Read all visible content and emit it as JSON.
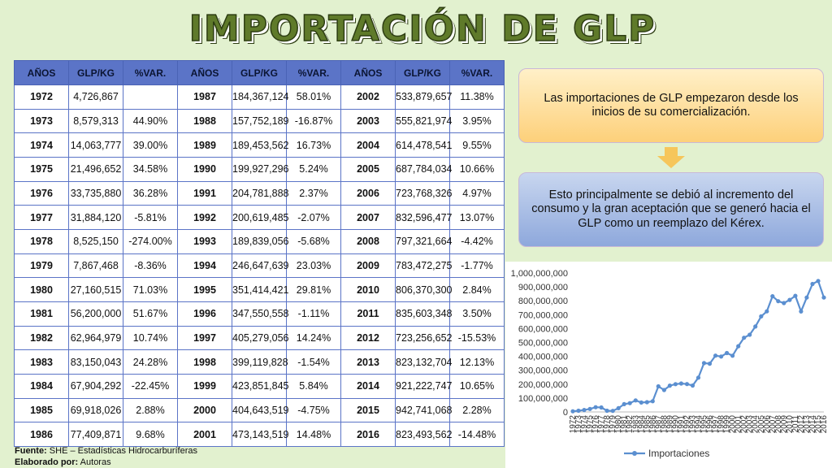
{
  "title": "IMPORTACIÓN DE GLP",
  "table": {
    "headers": [
      "AÑOS",
      "GLP/KG",
      "%VAR.",
      "AÑOS",
      "GLP/KG",
      "%VAR.",
      "AÑOS",
      "GLP/KG",
      "%VAR."
    ],
    "rows": [
      [
        "1972",
        "4,726,867",
        "",
        "1987",
        "184,367,124",
        "58.01%",
        "2002",
        "533,879,657",
        "11.38%"
      ],
      [
        "1973",
        "8,579,313",
        "44.90%",
        "1988",
        "157,752,189",
        "-16.87%",
        "2003",
        "555,821,974",
        "3.95%"
      ],
      [
        "1974",
        "14,063,777",
        "39.00%",
        "1989",
        "189,453,562",
        "16.73%",
        "2004",
        "614,478,541",
        "9.55%"
      ],
      [
        "1975",
        "21,496,652",
        "34.58%",
        "1990",
        "199,927,296",
        "5.24%",
        "2005",
        "687,784,034",
        "10.66%"
      ],
      [
        "1976",
        "33,735,880",
        "36.28%",
        "1991",
        "204,781,888",
        "2.37%",
        "2006",
        "723,768,326",
        "4.97%"
      ],
      [
        "1977",
        "31,884,120",
        "-5.81%",
        "1992",
        "200,619,485",
        "-2.07%",
        "2007",
        "832,596,477",
        "13.07%"
      ],
      [
        "1978",
        "8,525,150",
        "-274.00%",
        "1993",
        "189,839,056",
        "-5.68%",
        "2008",
        "797,321,664",
        "-4.42%"
      ],
      [
        "1979",
        "7,867,468",
        "-8.36%",
        "1994",
        "246,647,639",
        "23.03%",
        "2009",
        "783,472,275",
        "-1.77%"
      ],
      [
        "1980",
        "27,160,515",
        "71.03%",
        "1995",
        "351,414,421",
        "29.81%",
        "2010",
        "806,370,300",
        "2.84%"
      ],
      [
        "1981",
        "56,200,000",
        "51.67%",
        "1996",
        "347,550,558",
        "-1.11%",
        "2011",
        "835,603,348",
        "3.50%"
      ],
      [
        "1982",
        "62,964,979",
        "10.74%",
        "1997",
        "405,279,056",
        "14.24%",
        "2012",
        "723,256,652",
        "-15.53%"
      ],
      [
        "1983",
        "83,150,043",
        "24.28%",
        "1998",
        "399,119,828",
        "-1.54%",
        "2013",
        "823,132,704",
        "12.13%"
      ],
      [
        "1984",
        "67,904,292",
        "-22.45%",
        "1999",
        "423,851,845",
        "5.84%",
        "2014",
        "921,222,747",
        "10.65%"
      ],
      [
        "1985",
        "69,918,026",
        "2.88%",
        "2000",
        "404,643,519",
        "-4.75%",
        "2015",
        "942,741,068",
        "2.28%"
      ],
      [
        "1986",
        "77,409,871",
        "9.68%",
        "2001",
        "473,143,519",
        "14.48%",
        "2016",
        "823,493,562",
        "-14.48%"
      ]
    ]
  },
  "footnote": {
    "source_label": "Fuente:",
    "source_text": " SHE – Estadísticas Hidrocarburíferas",
    "author_label": "Elaborado por:",
    "author_text": " Autoras"
  },
  "box1_text": "Las importaciones de GLP empezaron desde los inicios de su comercialización.",
  "box2_text": "Esto principalmente se debió al incremento del consumo y la gran aceptación que se generó hacia el GLP como un reemplazo del Kérex.",
  "colors": {
    "line": "#5b8fd0",
    "header": "#5b74c7",
    "arrow": "#f6c65b"
  },
  "chart_data": {
    "type": "line",
    "title": "",
    "xlabel": "",
    "ylabel": "",
    "ylim": [
      0,
      1000000000
    ],
    "y_ticks": [
      "1,000,000,000",
      "900,000,000",
      "800,000,000",
      "700,000,000",
      "600,000,000",
      "500,000,000",
      "400,000,000",
      "300,000,000",
      "200,000,000",
      "100,000,000",
      "0"
    ],
    "legend": "Importaciones",
    "x": [
      "1972",
      "1973",
      "1974",
      "1975",
      "1976",
      "1977",
      "1978",
      "1979",
      "1980",
      "1981",
      "1982",
      "1983",
      "1984",
      "1985",
      "1986",
      "1987",
      "1988",
      "1989",
      "1990",
      "1991",
      "1992",
      "1993",
      "1994",
      "1995",
      "1996",
      "1997",
      "1998",
      "1999",
      "2000",
      "2001",
      "2002",
      "2003",
      "2004",
      "2005",
      "2006",
      "2007",
      "2008",
      "2009",
      "2010",
      "2011",
      "2012",
      "2013",
      "2014",
      "2015",
      "2016"
    ],
    "values": [
      4726867,
      8579313,
      14063777,
      21496652,
      33735880,
      31884120,
      8525150,
      7867468,
      27160515,
      56200000,
      62964979,
      83150043,
      67904292,
      69918026,
      77409871,
      184367124,
      157752189,
      189453562,
      199927296,
      204781888,
      200619485,
      189839056,
      246647639,
      351414421,
      347550558,
      405279056,
      399119828,
      423851845,
      404643519,
      473143519,
      533879657,
      555821974,
      614478541,
      687784034,
      723768326,
      832596477,
      797321664,
      783472275,
      806370300,
      835603348,
      723256652,
      823132704,
      921222747,
      942741068,
      823493562
    ]
  }
}
